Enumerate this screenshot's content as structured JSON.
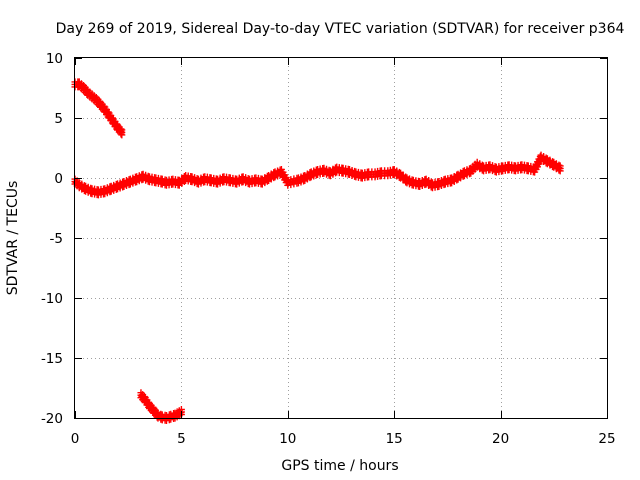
{
  "chart_data": {
    "type": "scatter",
    "title": "Day 269 of 2019, Sidereal Day-to-day VTEC variation (SDTVAR) for receiver p364",
    "xlabel": "GPS time / hours",
    "ylabel": "SDTVAR / TECUs",
    "xlim": [
      0,
      25
    ],
    "ylim": [
      -20,
      10
    ],
    "xticks": [
      0,
      5,
      10,
      15,
      20,
      25
    ],
    "yticks": [
      -20,
      -15,
      -10,
      -5,
      0,
      5,
      10
    ],
    "xtick_labels": [
      "0",
      "5",
      "10",
      "15",
      "20",
      "25"
    ],
    "ytick_labels": [
      "-20",
      "-15",
      "-10",
      "-5",
      "0",
      "5",
      "10"
    ],
    "grid": true,
    "marker": "+",
    "color": "#ff0000",
    "series": [
      {
        "name": "main",
        "x": [
          0.0,
          0.2,
          0.5,
          0.8,
          1.1,
          1.4,
          1.7,
          2.0,
          2.3,
          2.6,
          2.9,
          3.2,
          3.5,
          3.8,
          4.1,
          4.3,
          4.6,
          4.9,
          5.2,
          5.5,
          5.8,
          6.1,
          6.4,
          6.7,
          7.0,
          7.3,
          7.6,
          7.9,
          8.2,
          8.5,
          8.8,
          9.1,
          9.4,
          9.7,
          10.0,
          10.5,
          10.8,
          11.1,
          11.4,
          11.7,
          12.0,
          12.3,
          12.6,
          12.9,
          13.2,
          13.5,
          13.8,
          14.1,
          14.4,
          14.7,
          15.0,
          15.3,
          15.6,
          15.9,
          16.2,
          16.5,
          16.8,
          17.1,
          17.4,
          17.7,
          18.0,
          18.3,
          18.6,
          18.9,
          19.2,
          19.5,
          19.8,
          20.1,
          20.4,
          20.7,
          21.0,
          21.3,
          21.6,
          21.9,
          22.2,
          22.5,
          22.8
        ],
        "y": [
          -0.3,
          -0.6,
          -0.9,
          -1.1,
          -1.2,
          -1.1,
          -0.9,
          -0.7,
          -0.5,
          -0.3,
          -0.1,
          0.1,
          -0.1,
          -0.2,
          -0.3,
          -0.4,
          -0.3,
          -0.4,
          0.0,
          -0.1,
          -0.3,
          -0.1,
          -0.2,
          -0.3,
          -0.1,
          -0.2,
          -0.3,
          -0.1,
          -0.3,
          -0.2,
          -0.3,
          0.0,
          0.3,
          0.5,
          -0.4,
          -0.2,
          0.0,
          0.3,
          0.5,
          0.6,
          0.4,
          0.7,
          0.6,
          0.5,
          0.3,
          0.2,
          0.3,
          0.3,
          0.4,
          0.4,
          0.5,
          0.2,
          -0.2,
          -0.4,
          -0.5,
          -0.3,
          -0.6,
          -0.5,
          -0.3,
          -0.2,
          0.1,
          0.4,
          0.6,
          1.1,
          0.8,
          0.9,
          0.7,
          0.8,
          0.9,
          0.8,
          0.9,
          0.8,
          0.7,
          1.7,
          1.4,
          1.1,
          0.8
        ]
      },
      {
        "name": "upper-branch",
        "x": [
          0.0,
          0.2,
          0.4,
          0.6,
          0.8,
          1.0,
          1.2,
          1.4,
          1.6,
          1.8,
          2.0,
          2.2
        ],
        "y": [
          7.8,
          7.8,
          7.5,
          7.1,
          6.8,
          6.5,
          6.1,
          5.7,
          5.2,
          4.7,
          4.2,
          3.8
        ]
      },
      {
        "name": "lower-branch",
        "x": [
          3.1,
          3.3,
          3.5,
          3.7,
          3.9,
          4.1,
          4.3,
          4.5,
          4.7,
          4.9,
          5.0
        ],
        "y": [
          -18.1,
          -18.5,
          -19.0,
          -19.4,
          -19.8,
          -19.95,
          -20.0,
          -19.9,
          -19.8,
          -19.6,
          -19.5
        ]
      }
    ]
  }
}
